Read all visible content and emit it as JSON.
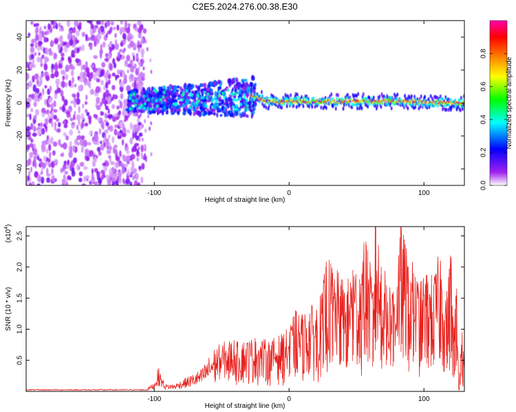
{
  "title": "C2E5.2024.276.00.38.E30",
  "chart_data": [
    {
      "type": "heatmap",
      "title": "C2E5.2024.276.00.38.E30",
      "xlabel": "Height of straight line (km)",
      "ylabel": "Frequency (Hz)",
      "xlim": [
        -195,
        130
      ],
      "ylim": [
        -50,
        50
      ],
      "x_ticks": [
        -100,
        0,
        100
      ],
      "x_tick_labels": [
        "-100",
        "0",
        "100"
      ],
      "y_ticks": [
        -40,
        -20,
        0,
        20,
        40
      ],
      "y_tick_labels": [
        "-40",
        "-20",
        "0",
        "20",
        "40"
      ],
      "grid": false,
      "colorbar": {
        "label": "Normalized spectral amplitude",
        "range": [
          0,
          1
        ],
        "ticks": [
          0.0,
          0.2,
          0.4,
          0.6,
          0.8
        ],
        "tick_labels": [
          "0.0",
          "0.2",
          "0.4",
          "0.6",
          "0.8"
        ],
        "colormap": [
          "#ffffff",
          "#a020f0",
          "#0000ff",
          "#00ffff",
          "#00ff00",
          "#ffff00",
          "#ff8000",
          "#ff0000",
          "#ff00aa"
        ]
      },
      "regions": [
        {
          "x_range": [
            -195,
            -107
          ],
          "freq_range": [
            -50,
            50
          ],
          "amplitude": "low (0.0-0.2), scattered"
        },
        {
          "x_range": [
            -120,
            -25
          ],
          "freq_range": [
            -12,
            15
          ],
          "amplitude": "0.2-0.5"
        },
        {
          "x_range": [
            -25,
            130
          ],
          "freq_center": 1,
          "freq_width": 6,
          "amplitude": "0.5-0.9, narrow band near 0 Hz"
        }
      ]
    },
    {
      "type": "line",
      "xlabel": "Height of straight line (km)",
      "ylabel": "SNR (10 * v/v)",
      "y_multiplier_label": "(x10",
      "y_multiplier_exp": "4",
      "y_multiplier_close": ")",
      "xlim": [
        -195,
        130
      ],
      "ylim": [
        0,
        2.65
      ],
      "x_ticks": [
        -100,
        0,
        100
      ],
      "x_tick_labels": [
        "-100",
        "0",
        "100"
      ],
      "y_ticks": [
        0.5,
        1.0,
        1.5,
        2.0,
        2.5
      ],
      "y_tick_labels": [
        "0.5",
        "1.0",
        "1.5",
        "2.0",
        "2.5"
      ],
      "series_color": "#e8201c",
      "series": [
        {
          "x": [
            -195,
            -160,
            -120,
            -105,
            -100,
            -97,
            -92,
            -85,
            -75,
            -65,
            -55,
            -45,
            -35,
            -25,
            -15,
            -5,
            0,
            5,
            10,
            15,
            20,
            25,
            27,
            32,
            38,
            43,
            47,
            52,
            57,
            62,
            64,
            68,
            72,
            77,
            83,
            88,
            92,
            97,
            102,
            107,
            112,
            117,
            120,
            122,
            124,
            126,
            128,
            130
          ],
          "values": [
            0.02,
            0.02,
            0.03,
            0.05,
            0.12,
            0.33,
            0.1,
            0.1,
            0.2,
            0.3,
            0.6,
            0.7,
            0.75,
            0.8,
            0.75,
            0.85,
            0.95,
            1.2,
            1.15,
            1.25,
            1.3,
            1.5,
            2.0,
            1.9,
            1.7,
            1.6,
            1.95,
            1.8,
            2.35,
            1.6,
            2.65,
            2.0,
            1.7,
            1.6,
            2.55,
            2.0,
            1.9,
            1.6,
            1.8,
            1.7,
            2.1,
            1.5,
            2.15,
            0.9,
            1.65,
            0.1,
            0.95,
            0.45
          ]
        }
      ]
    }
  ]
}
